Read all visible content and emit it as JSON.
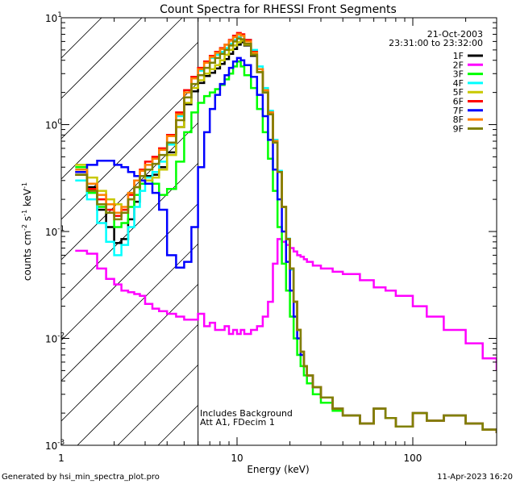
{
  "chart_data": {
    "type": "line",
    "title": "Count Spectra for RHESSI Front Segments",
    "xlabel": "Energy (keV)",
    "ylabel_parts": [
      "counts cm",
      "-2",
      " s",
      "-1",
      " keV",
      "-1"
    ],
    "xscale": "log",
    "yscale": "log",
    "xlim": [
      1,
      300
    ],
    "ylim": [
      0.001,
      10
    ],
    "x_ticks": [
      {
        "value": 1,
        "label": "1"
      },
      {
        "value": 10,
        "label": "10"
      },
      {
        "value": 100,
        "label": "100"
      }
    ],
    "y_ticks": [
      {
        "value": 0.001,
        "base": "10",
        "exp": "-3"
      },
      {
        "value": 0.01,
        "base": "10",
        "exp": "-2"
      },
      {
        "value": 0.1,
        "base": "10",
        "exp": "-1"
      },
      {
        "value": 1,
        "base": "10",
        "exp": "0"
      },
      {
        "value": 10,
        "base": "10",
        "exp": "1"
      }
    ],
    "hatched_region": {
      "xmin": 1,
      "xmax": 6
    },
    "vertical_line_x": 6,
    "date": "21-Oct-2003",
    "time_range": "23:31:00 to 23:32:00",
    "annotations": [
      "Includes Background",
      "Att A1, FDecim 1"
    ],
    "footer_left": "Generated by hsi_min_spectra_plot.pro",
    "footer_right": "11-Apr-2023 16:20",
    "energy_bins": [
      1.2,
      1.4,
      1.6,
      1.8,
      2.0,
      2.2,
      2.4,
      2.6,
      2.8,
      3.0,
      3.3,
      3.6,
      4.0,
      4.5,
      5.0,
      5.5,
      6.0,
      6.5,
      7.0,
      7.5,
      8.0,
      8.5,
      9.0,
      9.5,
      10,
      10.5,
      11,
      12,
      13,
      14,
      15,
      16,
      17,
      18,
      19,
      20,
      21,
      22,
      23,
      24,
      25,
      27,
      30,
      35,
      40,
      50,
      60,
      70,
      80,
      100,
      120,
      150,
      200,
      250,
      300
    ],
    "series": [
      {
        "name": "1F",
        "color": "#000000",
        "values": [
          0.34,
          0.26,
          0.16,
          0.11,
          0.078,
          0.085,
          0.13,
          0.19,
          0.28,
          0.33,
          0.34,
          0.4,
          0.55,
          0.95,
          1.55,
          2.05,
          2.45,
          2.85,
          3.05,
          3.35,
          3.7,
          4.1,
          4.6,
          5.1,
          5.6,
          5.9,
          5.5,
          4.4,
          3.1,
          2.0,
          1.25,
          0.68,
          0.36,
          0.17,
          0.085,
          0.045,
          0.022,
          0.012,
          0.0075,
          0.0055,
          0.0045,
          0.0035,
          0.0028,
          0.0022,
          0.0019,
          0.0016,
          0.0022,
          0.0018,
          0.0015,
          0.002,
          0.0017,
          0.0019,
          0.0016,
          0.0014,
          0.0013
        ]
      },
      {
        "name": "2F",
        "color": "#ff00ff",
        "values": [
          0.066,
          0.062,
          0.045,
          0.036,
          0.032,
          0.028,
          0.027,
          0.026,
          0.025,
          0.021,
          0.019,
          0.018,
          0.017,
          0.016,
          0.015,
          0.015,
          0.017,
          0.013,
          0.014,
          0.012,
          0.012,
          0.013,
          0.011,
          0.012,
          0.011,
          0.012,
          0.011,
          0.012,
          0.013,
          0.016,
          0.022,
          0.05,
          0.085,
          0.08,
          0.075,
          0.07,
          0.065,
          0.06,
          0.058,
          0.055,
          0.052,
          0.048,
          0.045,
          0.042,
          0.04,
          0.035,
          0.03,
          0.028,
          0.025,
          0.02,
          0.016,
          0.012,
          0.009,
          0.0065,
          0.005
        ]
      },
      {
        "name": "3F",
        "color": "#00ff00",
        "values": [
          0.4,
          0.23,
          0.17,
          0.15,
          0.11,
          0.12,
          0.17,
          0.22,
          0.28,
          0.3,
          0.28,
          0.22,
          0.25,
          0.45,
          0.85,
          1.3,
          1.6,
          1.85,
          2.0,
          2.15,
          2.35,
          2.65,
          3.0,
          3.5,
          3.9,
          3.5,
          2.9,
          2.2,
          1.4,
          0.85,
          0.48,
          0.24,
          0.11,
          0.05,
          0.028,
          0.016,
          0.01,
          0.007,
          0.0055,
          0.0045,
          0.0038,
          0.003,
          0.0025,
          0.0021,
          0.0019,
          0.0016,
          0.0022,
          0.0018,
          0.0015,
          0.002,
          0.0017,
          0.0019,
          0.0016,
          0.0014,
          0.0013
        ]
      },
      {
        "name": "4F",
        "color": "#00ffff",
        "values": [
          0.3,
          0.2,
          0.12,
          0.08,
          0.06,
          0.075,
          0.11,
          0.17,
          0.24,
          0.32,
          0.36,
          0.45,
          0.65,
          1.2,
          2.0,
          2.7,
          3.2,
          3.8,
          4.2,
          4.5,
          4.8,
          5.2,
          5.7,
          6.2,
          6.6,
          6.8,
          6.2,
          5.0,
          3.5,
          2.2,
          1.35,
          0.72,
          0.37,
          0.17,
          0.086,
          0.044,
          0.022,
          0.012,
          0.0075,
          0.0055,
          0.0045,
          0.0035,
          0.0028,
          0.0022,
          0.0019,
          0.0016,
          0.0022,
          0.0018,
          0.0015,
          0.002,
          0.0017,
          0.0019,
          0.0016,
          0.0014,
          0.0013
        ]
      },
      {
        "name": "5F",
        "color": "#c8c800",
        "values": [
          0.42,
          0.32,
          0.24,
          0.2,
          0.18,
          0.16,
          0.2,
          0.26,
          0.33,
          0.3,
          0.32,
          0.38,
          0.52,
          0.95,
          1.6,
          2.2,
          2.6,
          3.0,
          3.3,
          3.6,
          4.0,
          4.5,
          5.0,
          5.5,
          5.9,
          6.1,
          5.6,
          4.5,
          3.1,
          2.0,
          1.25,
          0.68,
          0.36,
          0.17,
          0.085,
          0.045,
          0.022,
          0.012,
          0.0075,
          0.0055,
          0.0045,
          0.0035,
          0.0028,
          0.0022,
          0.0019,
          0.0016,
          0.0022,
          0.0018,
          0.0015,
          0.002,
          0.0017,
          0.0019,
          0.0016,
          0.0014,
          0.0013
        ]
      },
      {
        "name": "6F",
        "color": "#ff0000",
        "values": [
          0.36,
          0.25,
          0.2,
          0.16,
          0.14,
          0.16,
          0.22,
          0.3,
          0.38,
          0.45,
          0.5,
          0.6,
          0.8,
          1.3,
          2.1,
          2.8,
          3.4,
          3.9,
          4.4,
          4.8,
          5.2,
          5.6,
          6.2,
          6.8,
          7.2,
          7.0,
          6.2,
          4.8,
          3.3,
          2.1,
          1.3,
          0.7,
          0.36,
          0.17,
          0.085,
          0.045,
          0.022,
          0.012,
          0.0075,
          0.0055,
          0.0045,
          0.0035,
          0.0028,
          0.0022,
          0.0019,
          0.0016,
          0.0022,
          0.0018,
          0.0015,
          0.002,
          0.0017,
          0.0019,
          0.0016,
          0.0014,
          0.0013
        ]
      },
      {
        "name": "7F",
        "color": "#0000ff",
        "values": [
          0.36,
          0.42,
          0.46,
          0.46,
          0.42,
          0.4,
          0.36,
          0.33,
          0.3,
          0.28,
          0.23,
          0.16,
          0.06,
          0.046,
          0.052,
          0.11,
          0.4,
          0.85,
          1.4,
          1.9,
          2.4,
          2.9,
          3.4,
          3.9,
          4.2,
          4.0,
          3.6,
          2.8,
          1.9,
          1.2,
          0.72,
          0.38,
          0.2,
          0.1,
          0.052,
          0.028,
          0.016,
          0.01,
          0.007,
          0.0055,
          0.0045,
          0.0035,
          0.0028,
          0.0022,
          0.0019,
          0.0016,
          0.0022,
          0.0018,
          0.0015,
          0.002,
          0.0017,
          0.0019,
          0.0016,
          0.0014,
          0.0013
        ]
      },
      {
        "name": "8F",
        "color": "#ff8000",
        "values": [
          0.38,
          0.28,
          0.22,
          0.18,
          0.15,
          0.17,
          0.23,
          0.3,
          0.37,
          0.42,
          0.48,
          0.58,
          0.78,
          1.25,
          2.0,
          2.7,
          3.3,
          3.8,
          4.3,
          4.7,
          5.1,
          5.6,
          6.1,
          6.6,
          7.0,
          6.8,
          6.0,
          4.7,
          3.3,
          2.1,
          1.3,
          0.7,
          0.36,
          0.17,
          0.085,
          0.045,
          0.022,
          0.012,
          0.0075,
          0.0055,
          0.0045,
          0.0035,
          0.0028,
          0.0022,
          0.0019,
          0.0016,
          0.0022,
          0.0018,
          0.0015,
          0.002,
          0.0017,
          0.0019,
          0.0016,
          0.0014,
          0.0013
        ]
      },
      {
        "name": "9F",
        "color": "#808000",
        "values": [
          0.34,
          0.24,
          0.18,
          0.15,
          0.13,
          0.15,
          0.2,
          0.26,
          0.33,
          0.38,
          0.43,
          0.52,
          0.68,
          1.1,
          1.8,
          2.4,
          2.9,
          3.4,
          3.8,
          4.2,
          4.6,
          5.0,
          5.5,
          6.0,
          6.4,
          6.3,
          5.7,
          4.5,
          3.1,
          2.0,
          1.25,
          0.68,
          0.36,
          0.17,
          0.085,
          0.045,
          0.022,
          0.012,
          0.0075,
          0.0055,
          0.0045,
          0.0035,
          0.0028,
          0.0022,
          0.0019,
          0.0016,
          0.0022,
          0.0018,
          0.0015,
          0.002,
          0.0017,
          0.0019,
          0.0016,
          0.0014,
          0.0013
        ]
      }
    ]
  }
}
